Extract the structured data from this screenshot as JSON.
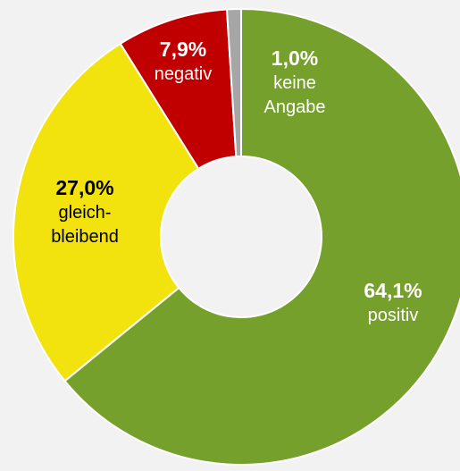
{
  "chart_data": {
    "type": "donut",
    "categories": [
      "positiv",
      "gleich-\nbleibend",
      "negativ",
      "keine\nAngabe"
    ],
    "values": [
      64.1,
      27.0,
      7.9,
      1.0
    ],
    "value_labels": [
      "64,1%",
      "27,0%",
      "7,9%",
      "1,0%"
    ],
    "colors": [
      "#76a02c",
      "#f2e30f",
      "#c00000",
      "#a6a6a6"
    ],
    "label_colors": [
      "#ffffff",
      "#000000",
      "#ffffff",
      "#ffffff"
    ]
  }
}
